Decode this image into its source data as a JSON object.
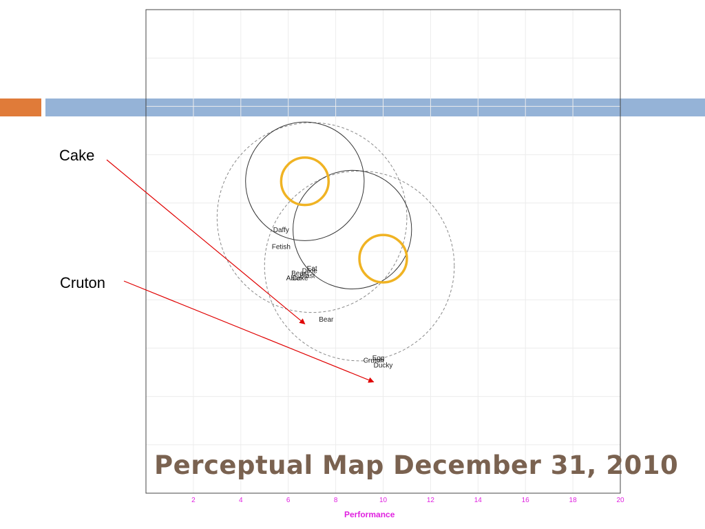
{
  "slide": {
    "title": "Perceptual Map December 31, 2010",
    "accent_orange": "#e07b39",
    "accent_blue": "#95b3d7",
    "title_color": "#7a6250"
  },
  "callouts": [
    {
      "label": "Cake",
      "target": [
        6.7,
        7.0
      ]
    },
    {
      "label": "Cruton",
      "target": [
        9.6,
        4.6
      ]
    }
  ],
  "chart_data": {
    "type": "scatter",
    "xlabel": "Performance",
    "ylabel": "",
    "xlim": [
      0,
      20
    ],
    "ylim": [
      0,
      20
    ],
    "x_ticks": [
      2,
      4,
      6,
      8,
      10,
      12,
      14,
      16,
      18,
      20
    ],
    "grid": true,
    "axis_color": "#e020e0",
    "points": [
      {
        "label": "Daffy",
        "x": 5.7,
        "y": 10.8
      },
      {
        "label": "Fetish",
        "x": 5.7,
        "y": 10.1
      },
      {
        "label": "Eat",
        "x": 7.0,
        "y": 9.2
      },
      {
        "label": "Dixie",
        "x": 6.9,
        "y": 9.1
      },
      {
        "label": "Beast",
        "x": 6.5,
        "y": 9.0
      },
      {
        "label": "Blast",
        "x": 6.8,
        "y": 8.9
      },
      {
        "label": "Cake",
        "x": 6.5,
        "y": 8.8
      },
      {
        "label": "Able",
        "x": 6.2,
        "y": 8.8
      },
      {
        "label": "Bear",
        "x": 7.6,
        "y": 7.1
      },
      {
        "label": "Egg",
        "x": 9.8,
        "y": 5.5
      },
      {
        "label": "Cruton",
        "x": 9.6,
        "y": 5.4
      },
      {
        "label": "Ducky",
        "x": 10.0,
        "y": 5.2
      }
    ],
    "circles": [
      {
        "cx": 7.0,
        "cy": 11.4,
        "r": 4.0,
        "style": "dashed"
      },
      {
        "cx": 9.0,
        "cy": 9.4,
        "r": 4.0,
        "style": "dashed"
      },
      {
        "cx": 6.7,
        "cy": 12.9,
        "r": 2.5,
        "style": "solid"
      },
      {
        "cx": 8.7,
        "cy": 10.9,
        "r": 2.5,
        "style": "solid"
      },
      {
        "cx": 6.7,
        "cy": 12.9,
        "r": 1.0,
        "style": "highlight"
      },
      {
        "cx": 10.0,
        "cy": 9.7,
        "r": 1.0,
        "style": "highlight"
      }
    ],
    "highlight_color": "#f0b323"
  }
}
